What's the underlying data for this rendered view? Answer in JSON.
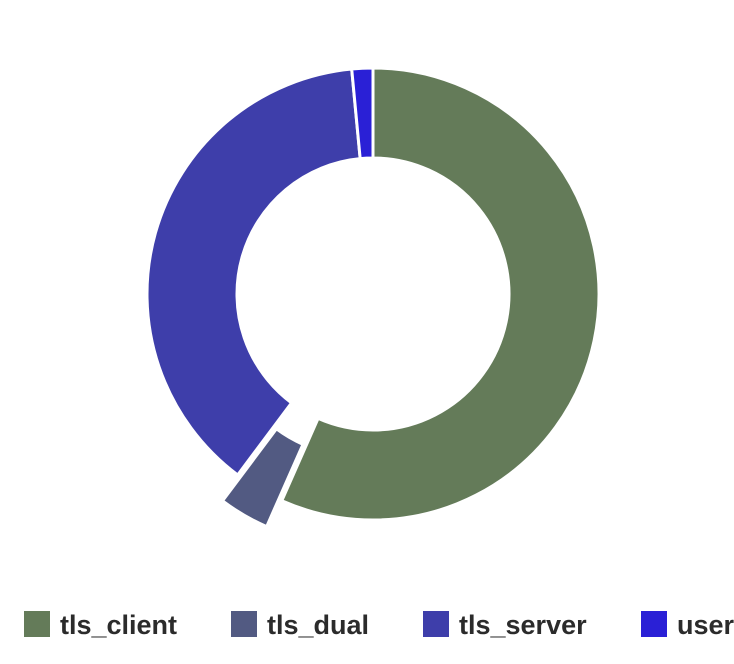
{
  "chart_data": {
    "type": "pie",
    "variant": "donut",
    "title": "",
    "categories": [
      "tls_client",
      "tls_dual",
      "tls_server",
      "user"
    ],
    "values": [
      56.5,
      3.6,
      38.2,
      1.5
    ],
    "colors": [
      "#647b59",
      "#525a82",
      "#3e3eaa",
      "#2a20d6"
    ],
    "legend": {
      "position": "bottom",
      "items": [
        {
          "label": "tls_client",
          "color": "#647b59"
        },
        {
          "label": "tls_dual",
          "color": "#525a82"
        },
        {
          "label": "tls_server",
          "color": "#3e3eaa"
        },
        {
          "label": "user",
          "color": "#2a20d6"
        }
      ]
    },
    "gaps": [
      "tls_dual"
    ]
  }
}
